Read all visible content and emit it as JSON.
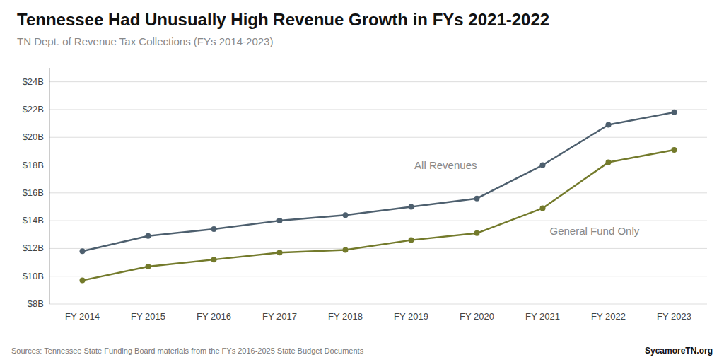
{
  "chart_data": {
    "type": "line",
    "title": "Tennessee Had Unusually High Revenue Growth in FYs 2021-2022",
    "subtitle": "TN Dept. of Revenue Tax Collections (FYs 2014-2023)",
    "source": "Sources: Tennessee State Funding Board materials from the FYs 2016-2025 State Budget Documents",
    "credit": "SycamoreTN.org",
    "categories": [
      "FY 2014",
      "FY 2015",
      "FY 2016",
      "FY 2017",
      "FY 2018",
      "FY 2019",
      "FY 2020",
      "FY 2021",
      "FY 2022",
      "FY 2023"
    ],
    "series": [
      {
        "name": "All Revenues",
        "color": "#4d5f6e",
        "marker": "circle",
        "values": [
          11.8,
          12.9,
          13.4,
          14.0,
          14.4,
          15.0,
          15.6,
          18.0,
          20.9,
          21.8
        ]
      },
      {
        "name": "General Fund Only",
        "color": "#737a2b",
        "marker": "circle",
        "values": [
          9.7,
          10.7,
          11.2,
          11.7,
          11.9,
          12.6,
          13.1,
          14.9,
          18.2,
          19.1
        ]
      }
    ],
    "ylim": [
      8,
      25
    ],
    "yticks": [
      {
        "value": 8,
        "label": "$8B"
      },
      {
        "value": 10,
        "label": "$10B"
      },
      {
        "value": 12,
        "label": "$12B"
      },
      {
        "value": 14,
        "label": "$14B"
      },
      {
        "value": 16,
        "label": "$16B"
      },
      {
        "value": 18,
        "label": "$18B"
      },
      {
        "value": 20,
        "label": "$20B"
      },
      {
        "value": 22,
        "label": "$22B"
      },
      {
        "value": 24,
        "label": "$24B"
      }
    ],
    "grid": true
  }
}
